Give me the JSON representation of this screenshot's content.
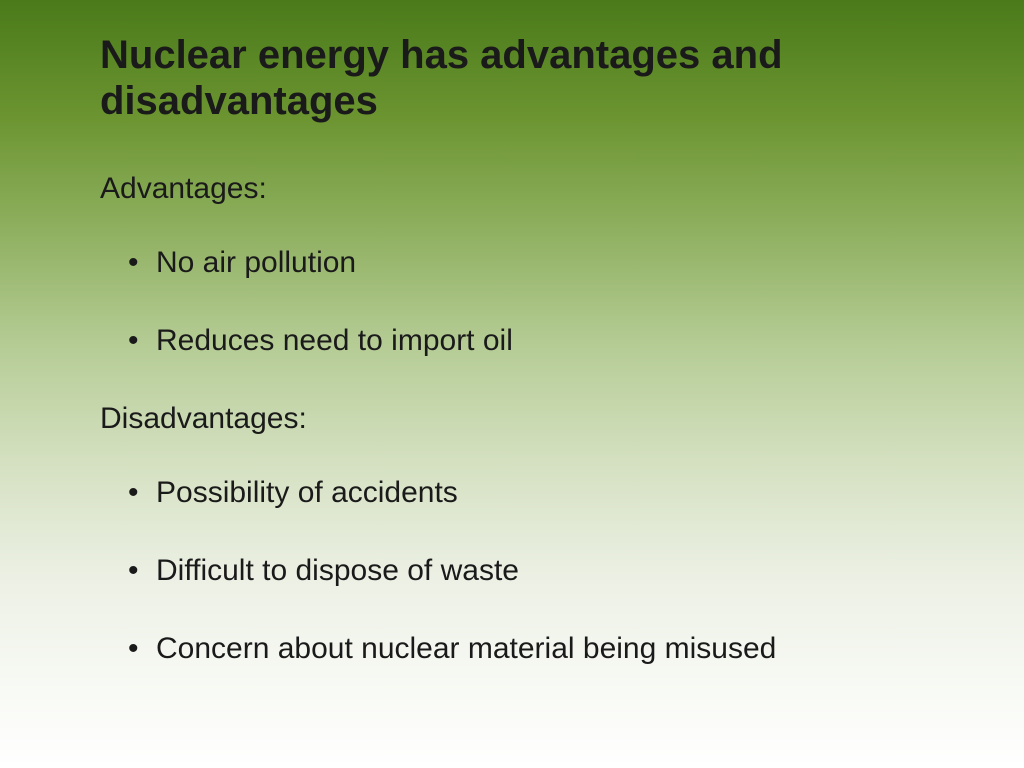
{
  "title": "Nuclear energy has advantages and disadvantages",
  "sections": [
    {
      "label": "Advantages:",
      "items": [
        "No air pollution",
        "Reduces need to import oil"
      ]
    },
    {
      "label": "Disadvantages:",
      "items": [
        "Possibility of accidents",
        "Difficult to dispose of waste",
        "Concern about nuclear material being misused"
      ]
    }
  ],
  "style": {
    "background_gradient_top": "#4a7a1a",
    "background_gradient_bottom": "#ffffff",
    "text_color": "#1a1a1a",
    "title_fontsize": 40,
    "body_fontsize": 30,
    "font_family": "Arial"
  }
}
